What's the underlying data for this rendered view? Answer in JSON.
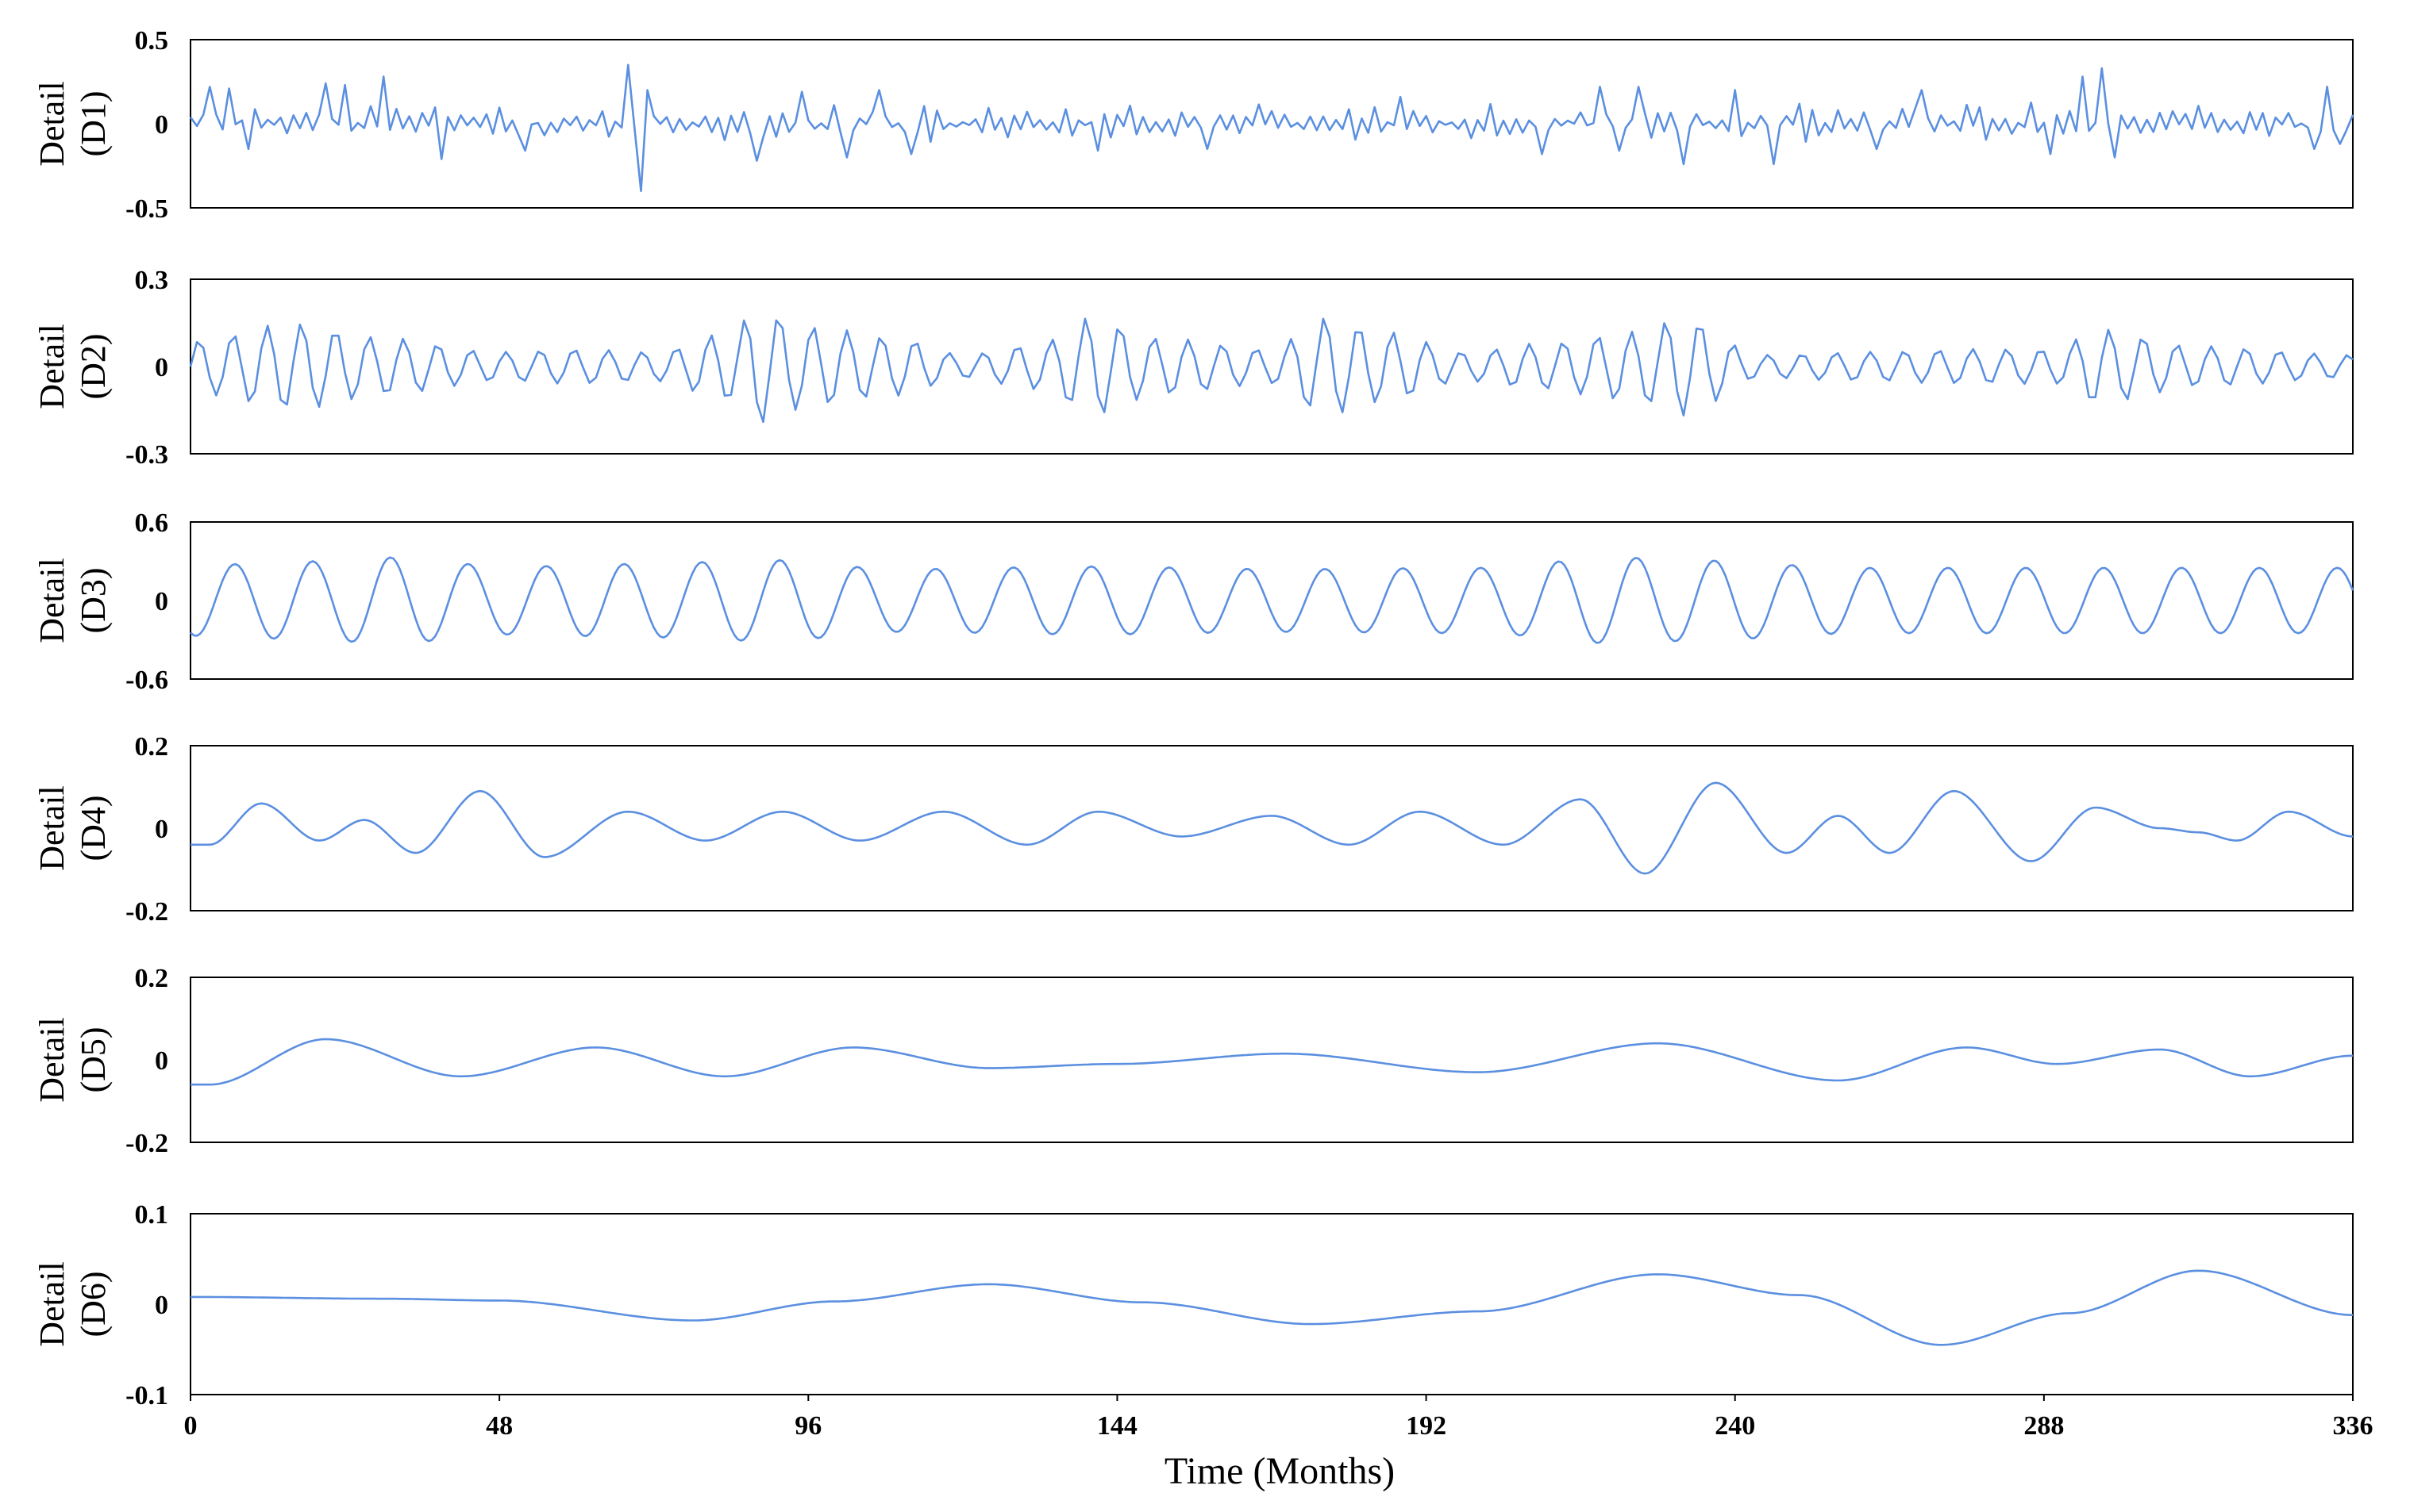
{
  "chart_data": [
    {
      "type": "line",
      "ylabel": [
        "Detail",
        "(D1)"
      ],
      "yticks": [
        "0.5",
        "0",
        "-0.5"
      ],
      "ylim": [
        -0.5,
        0.5
      ],
      "xlim": [
        0,
        336
      ],
      "color": "#5b8fe0",
      "series": [
        {
          "kind": "noise",
          "amplitude": 0.14,
          "spikes": [
            [
              3,
              0.22
            ],
            [
              6,
              0.21
            ],
            [
              9,
              -0.15
            ],
            [
              21,
              0.24
            ],
            [
              24,
              0.23
            ],
            [
              30,
              0.28
            ],
            [
              39,
              -0.21
            ],
            [
              52,
              -0.16
            ],
            [
              68,
              0.35
            ],
            [
              70,
              -0.4
            ],
            [
              71,
              0.2
            ],
            [
              88,
              -0.22
            ],
            [
              95,
              0.19
            ],
            [
              102,
              -0.2
            ],
            [
              107,
              0.2
            ],
            [
              112,
              -0.18
            ],
            [
              141,
              -0.16
            ],
            [
              158,
              -0.15
            ],
            [
              188,
              0.16
            ],
            [
              210,
              -0.18
            ],
            [
              219,
              0.22
            ],
            [
              222,
              -0.16
            ],
            [
              225,
              0.22
            ],
            [
              232,
              -0.24
            ],
            [
              240,
              0.2
            ],
            [
              246,
              -0.24
            ],
            [
              262,
              -0.15
            ],
            [
              269,
              0.2
            ],
            [
              289,
              -0.18
            ],
            [
              294,
              0.28
            ],
            [
              297,
              0.33
            ],
            [
              299,
              -0.2
            ],
            [
              330,
              -0.15
            ],
            [
              332,
              0.22
            ],
            [
              334,
              -0.12
            ]
          ],
          "seed": 11
        }
      ]
    },
    {
      "type": "line",
      "ylabel": [
        "Detail",
        "(D2)"
      ],
      "yticks": [
        "0.3",
        "0",
        "-0.3"
      ],
      "ylim": [
        -0.3,
        0.3
      ],
      "xlim": [
        0,
        336
      ],
      "color": "#5b8fe0",
      "series": [
        {
          "kind": "osc",
          "period": 5.3,
          "amps": [
            [
              0,
              0.09
            ],
            [
              16,
              0.15
            ],
            [
              30,
              0.1
            ],
            [
              48,
              0.05
            ],
            [
              60,
              0.06
            ],
            [
              72,
              0.05
            ],
            [
              84,
              0.12
            ],
            [
              88,
              0.2
            ],
            [
              96,
              0.14
            ],
            [
              110,
              0.1
            ],
            [
              120,
              0.04
            ],
            [
              132,
              0.08
            ],
            [
              140,
              0.17
            ],
            [
              150,
              0.1
            ],
            [
              168,
              0.06
            ],
            [
              176,
              0.17
            ],
            [
              186,
              0.12
            ],
            [
              198,
              0.05
            ],
            [
              210,
              0.08
            ],
            [
              224,
              0.12
            ],
            [
              232,
              0.17
            ],
            [
              244,
              0.04
            ],
            [
              260,
              0.05
            ],
            [
              276,
              0.06
            ],
            [
              290,
              0.06
            ],
            [
              296,
              0.13
            ],
            [
              312,
              0.07
            ],
            [
              336,
              0.04
            ]
          ]
        }
      ]
    },
    {
      "type": "line",
      "ylabel": [
        "Detail",
        "(D3)"
      ],
      "yticks": [
        "0.6",
        "0",
        "-0.6"
      ],
      "ylim": [
        -0.6,
        0.6
      ],
      "xlim": [
        0,
        336
      ],
      "color": "#5b8fe0",
      "series": [
        {
          "kind": "osc",
          "period": 12.1,
          "phase": -2.0,
          "amps": [
            [
              0,
              0.27
            ],
            [
              20,
              0.3
            ],
            [
              30,
              0.33
            ],
            [
              50,
              0.26
            ],
            [
              70,
              0.28
            ],
            [
              90,
              0.31
            ],
            [
              110,
              0.24
            ],
            [
              140,
              0.26
            ],
            [
              170,
              0.24
            ],
            [
              200,
              0.25
            ],
            [
              222,
              0.33
            ],
            [
              232,
              0.31
            ],
            [
              260,
              0.25
            ],
            [
              300,
              0.25
            ],
            [
              336,
              0.25
            ]
          ]
        }
      ]
    },
    {
      "type": "line",
      "ylabel": [
        "Detail",
        "(D4)"
      ],
      "yticks": [
        "0.2",
        "0",
        "-0.2"
      ],
      "ylim": [
        -0.2,
        0.2
      ],
      "xlim": [
        0,
        336
      ],
      "color": "#5b8fe0",
      "series": [
        {
          "kind": "knots",
          "points": [
            [
              0,
              -0.04
            ],
            [
              3,
              -0.04
            ],
            [
              11,
              0.06
            ],
            [
              20,
              -0.03
            ],
            [
              27,
              0.02
            ],
            [
              35,
              -0.06
            ],
            [
              45,
              0.09
            ],
            [
              55,
              -0.07
            ],
            [
              68,
              0.04
            ],
            [
              80,
              -0.03
            ],
            [
              92,
              0.04
            ],
            [
              104,
              -0.03
            ],
            [
              117,
              0.04
            ],
            [
              130,
              -0.04
            ],
            [
              141,
              0.04
            ],
            [
              154,
              -0.02
            ],
            [
              168,
              0.03
            ],
            [
              180,
              -0.04
            ],
            [
              191,
              0.04
            ],
            [
              204,
              -0.04
            ],
            [
              216,
              0.07
            ],
            [
              226,
              -0.11
            ],
            [
              237,
              0.11
            ],
            [
              248,
              -0.06
            ],
            [
              256,
              0.03
            ],
            [
              264,
              -0.06
            ],
            [
              274,
              0.09
            ],
            [
              286,
              -0.08
            ],
            [
              296,
              0.05
            ],
            [
              306,
              0.0
            ],
            [
              312,
              -0.01
            ],
            [
              318,
              -0.03
            ],
            [
              326,
              0.04
            ],
            [
              336,
              -0.02
            ]
          ]
        }
      ]
    },
    {
      "type": "line",
      "ylabel": [
        "Detail",
        "(D5)"
      ],
      "yticks": [
        "0.2",
        "0",
        "-0.2"
      ],
      "ylim": [
        -0.2,
        0.2
      ],
      "xlim": [
        0,
        336
      ],
      "color": "#5b8fe0",
      "series": [
        {
          "kind": "knots",
          "points": [
            [
              0,
              -0.06
            ],
            [
              3,
              -0.06
            ],
            [
              21,
              0.05
            ],
            [
              42,
              -0.04
            ],
            [
              63,
              0.03
            ],
            [
              83,
              -0.04
            ],
            [
              103,
              0.03
            ],
            [
              124,
              -0.02
            ],
            [
              144,
              -0.01
            ],
            [
              170,
              0.015
            ],
            [
              200,
              -0.03
            ],
            [
              228,
              0.04
            ],
            [
              256,
              -0.05
            ],
            [
              276,
              0.03
            ],
            [
              290,
              -0.01
            ],
            [
              306,
              0.025
            ],
            [
              320,
              -0.04
            ],
            [
              336,
              0.01
            ]
          ]
        }
      ]
    },
    {
      "type": "line",
      "ylabel": [
        "Detail",
        "(D6)"
      ],
      "yticks": [
        "0.1",
        "0",
        "-0.1"
      ],
      "ylim": [
        -0.1,
        0.1
      ],
      "xlim": [
        0,
        336
      ],
      "color": "#5b8fe0",
      "series": [
        {
          "kind": "knots",
          "points": [
            [
              0,
              0.008
            ],
            [
              30,
              0.006
            ],
            [
              48,
              0.004
            ],
            [
              78,
              -0.018
            ],
            [
              100,
              0.003
            ],
            [
              124,
              0.022
            ],
            [
              148,
              0.002
            ],
            [
              174,
              -0.022
            ],
            [
              200,
              -0.008
            ],
            [
              228,
              0.033
            ],
            [
              250,
              0.01
            ],
            [
              272,
              -0.045
            ],
            [
              292,
              -0.01
            ],
            [
              312,
              0.037
            ],
            [
              336,
              -0.012
            ]
          ]
        }
      ]
    }
  ],
  "x_axis": {
    "label": "Time (Months)",
    "ticks": [
      "0",
      "48",
      "96",
      "144",
      "192",
      "240",
      "288",
      "336"
    ]
  }
}
